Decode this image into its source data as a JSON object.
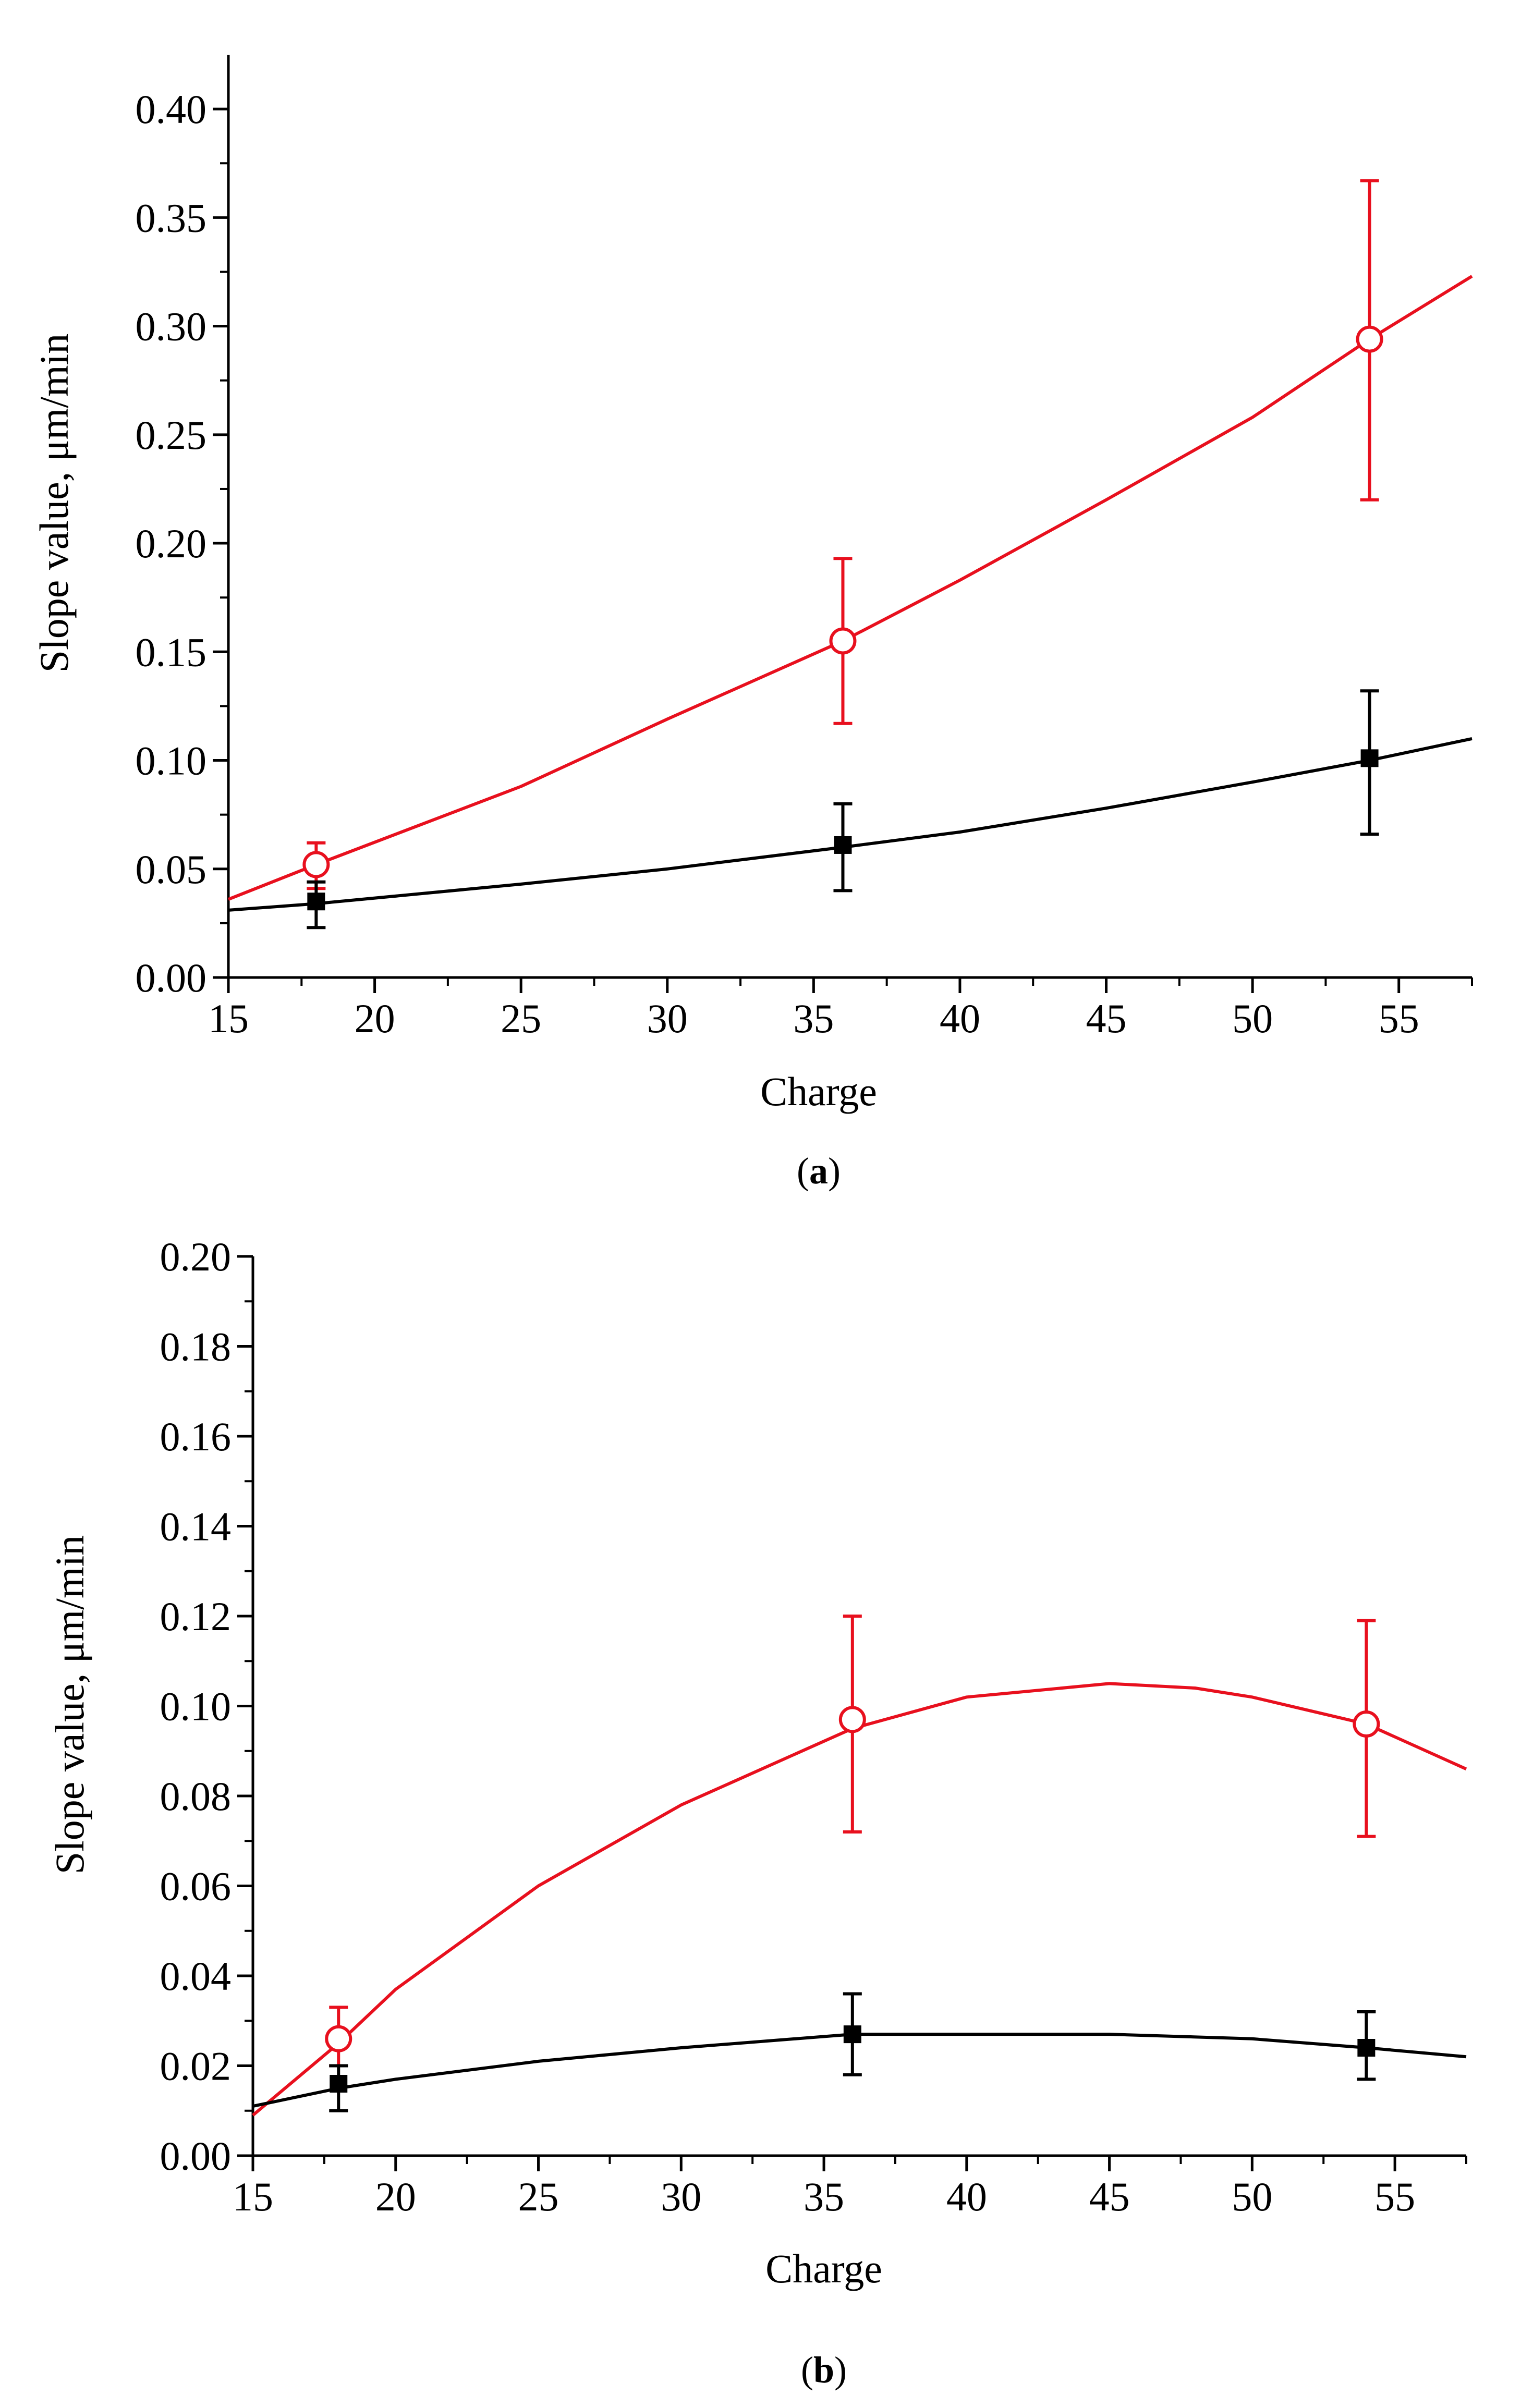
{
  "chart_data": [
    {
      "type": "line",
      "caption": "a",
      "title": "",
      "xlabel": "Charge",
      "ylabel": "Slope value, μm/min",
      "xlim": [
        15,
        57.5
      ],
      "ylim": [
        0,
        0.425
      ],
      "xticks": [
        "15",
        "20",
        "25",
        "30",
        "35",
        "40",
        "45",
        "50",
        "55"
      ],
      "yticks": [
        "0.00",
        "0.05",
        "0.10",
        "0.15",
        "0.20",
        "0.25",
        "0.30",
        "0.35",
        "0.40"
      ],
      "series": [
        {
          "name": "open-circle series",
          "color": "#e8101e",
          "marker": "open-circle",
          "points": [
            {
              "x": 18,
              "y": 0.052,
              "err_low": 0.041,
              "err_high": 0.062
            },
            {
              "x": 36,
              "y": 0.155,
              "err_low": 0.117,
              "err_high": 0.193
            },
            {
              "x": 54,
              "y": 0.294,
              "err_low": 0.22,
              "err_high": 0.367
            }
          ],
          "fit": {
            "x": [
              15,
              18,
              25,
              30,
              36,
              40,
              45,
              50,
              54,
              57.5
            ],
            "y": [
              0.036,
              0.052,
              0.088,
              0.119,
              0.155,
              0.183,
              0.22,
              0.258,
              0.294,
              0.323
            ]
          }
        },
        {
          "name": "filled-square series",
          "color": "#000000",
          "marker": "filled-square",
          "points": [
            {
              "x": 18,
              "y": 0.035,
              "err_low": 0.023,
              "err_high": 0.044
            },
            {
              "x": 36,
              "y": 0.061,
              "err_low": 0.04,
              "err_high": 0.08
            },
            {
              "x": 54,
              "y": 0.101,
              "err_low": 0.066,
              "err_high": 0.132
            }
          ],
          "fit": {
            "x": [
              15,
              18,
              25,
              30,
              36,
              40,
              45,
              50,
              54,
              57.5
            ],
            "y": [
              0.031,
              0.034,
              0.043,
              0.05,
              0.06,
              0.067,
              0.078,
              0.09,
              0.1,
              0.11
            ]
          }
        }
      ]
    },
    {
      "type": "line",
      "caption": "b",
      "title": "",
      "xlabel": "Charge",
      "ylabel": "Slope value, μm/min",
      "xlim": [
        15,
        57.5
      ],
      "ylim": [
        0,
        0.2
      ],
      "xticks": [
        "15",
        "20",
        "25",
        "30",
        "35",
        "40",
        "45",
        "50",
        "55"
      ],
      "yticks": [
        "0.00",
        "0.02",
        "0.04",
        "0.06",
        "0.08",
        "0.10",
        "0.12",
        "0.14",
        "0.16",
        "0.18",
        "0.20"
      ],
      "series": [
        {
          "name": "open-circle series",
          "color": "#e8101e",
          "marker": "open-circle",
          "points": [
            {
              "x": 18,
              "y": 0.026,
              "err_low": 0.02,
              "err_high": 0.033
            },
            {
              "x": 36,
              "y": 0.097,
              "err_low": 0.072,
              "err_high": 0.12
            },
            {
              "x": 54,
              "y": 0.096,
              "err_low": 0.071,
              "err_high": 0.119
            }
          ],
          "fit": {
            "x": [
              15,
              18,
              20,
              25,
              30,
              36,
              40,
              45,
              48,
              50,
              54,
              57.5
            ],
            "y": [
              0.009,
              0.025,
              0.037,
              0.06,
              0.078,
              0.095,
              0.102,
              0.105,
              0.104,
              0.102,
              0.096,
              0.086
            ]
          }
        },
        {
          "name": "filled-square series",
          "color": "#000000",
          "marker": "filled-square",
          "points": [
            {
              "x": 18,
              "y": 0.016,
              "err_low": 0.01,
              "err_high": 0.02
            },
            {
              "x": 36,
              "y": 0.027,
              "err_low": 0.018,
              "err_high": 0.036
            },
            {
              "x": 54,
              "y": 0.024,
              "err_low": 0.017,
              "err_high": 0.032
            }
          ],
          "fit": {
            "x": [
              15,
              18,
              20,
              25,
              30,
              36,
              40,
              45,
              50,
              54,
              57.5
            ],
            "y": [
              0.011,
              0.015,
              0.017,
              0.021,
              0.024,
              0.027,
              0.027,
              0.027,
              0.026,
              0.024,
              0.022
            ]
          }
        }
      ]
    }
  ]
}
